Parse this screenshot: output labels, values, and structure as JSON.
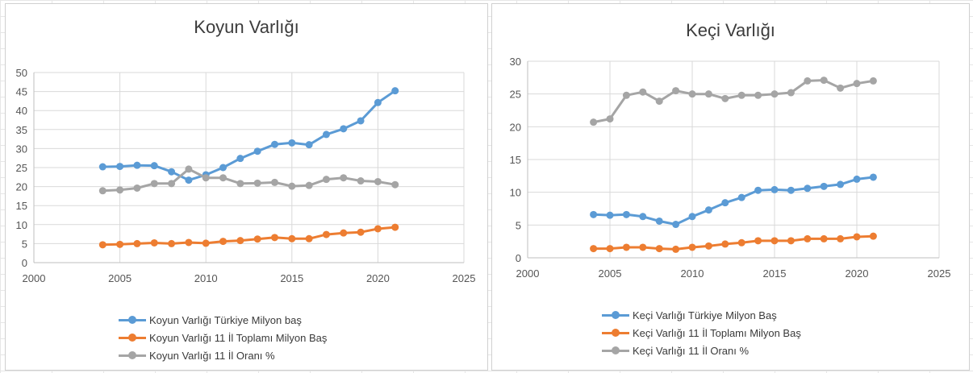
{
  "colors": {
    "series1": "#5b9bd5",
    "series2": "#ed7d31",
    "series3": "#a5a5a5",
    "gridline": "#d9d9d9",
    "axis": "#bfbfbf"
  },
  "chart_data": [
    {
      "type": "scatter",
      "markers": "lines-and-markers",
      "title": "Koyun Varlığı",
      "xlim": [
        2000,
        2025
      ],
      "ylim": [
        0,
        50
      ],
      "xticks": [
        2000,
        2005,
        2010,
        2015,
        2020,
        2025
      ],
      "yticks": [
        0,
        5,
        10,
        15,
        20,
        25,
        30,
        35,
        40,
        45,
        50
      ],
      "grid": true,
      "legend_position": "bottom",
      "x": [
        2004,
        2005,
        2006,
        2007,
        2008,
        2009,
        2010,
        2011,
        2012,
        2013,
        2014,
        2015,
        2016,
        2017,
        2018,
        2019,
        2020,
        2021
      ],
      "series": [
        {
          "name": "Koyun Varlığı Türkiye Milyon baş",
          "color": "#5b9bd5",
          "values": [
            25.2,
            25.3,
            25.6,
            25.5,
            23.9,
            21.7,
            23.1,
            25.0,
            27.4,
            29.3,
            31.1,
            31.5,
            31.0,
            33.7,
            35.2,
            37.3,
            42.1,
            45.2
          ]
        },
        {
          "name": "Koyun Varlığı 11 İl Toplamı Milyon Baş",
          "color": "#ed7d31",
          "values": [
            4.7,
            4.8,
            5.0,
            5.2,
            5.0,
            5.3,
            5.1,
            5.6,
            5.8,
            6.2,
            6.6,
            6.3,
            6.3,
            7.4,
            7.8,
            8.0,
            8.9,
            9.3
          ]
        },
        {
          "name": "Koyun Varlığı 11 İl Oranı %",
          "color": "#a5a5a5",
          "values": [
            18.9,
            19.1,
            19.6,
            20.8,
            20.8,
            24.6,
            22.3,
            22.3,
            20.8,
            20.9,
            21.1,
            20.1,
            20.3,
            21.9,
            22.3,
            21.5,
            21.3,
            20.5
          ]
        }
      ]
    },
    {
      "type": "scatter",
      "markers": "lines-and-markers",
      "title": "Keçi Varlığı",
      "xlim": [
        2000,
        2025
      ],
      "ylim": [
        0,
        30
      ],
      "xticks": [
        2000,
        2005,
        2010,
        2015,
        2020,
        2025
      ],
      "yticks": [
        0,
        5,
        10,
        15,
        20,
        25,
        30
      ],
      "grid": true,
      "legend_position": "bottom",
      "x": [
        2004,
        2005,
        2006,
        2007,
        2008,
        2009,
        2010,
        2011,
        2012,
        2013,
        2014,
        2015,
        2016,
        2017,
        2018,
        2019,
        2020,
        2021
      ],
      "series": [
        {
          "name": "Keçi Varlığı Türkiye Milyon Baş",
          "color": "#5b9bd5",
          "values": [
            6.6,
            6.5,
            6.6,
            6.3,
            5.6,
            5.1,
            6.3,
            7.3,
            8.4,
            9.2,
            10.3,
            10.4,
            10.3,
            10.6,
            10.9,
            11.2,
            12.0,
            12.3
          ]
        },
        {
          "name": "Keçi Varlığı 11 İl Toplamı Milyon Baş",
          "color": "#ed7d31",
          "values": [
            1.4,
            1.4,
            1.6,
            1.6,
            1.4,
            1.3,
            1.6,
            1.8,
            2.1,
            2.3,
            2.6,
            2.6,
            2.6,
            2.9,
            2.9,
            2.9,
            3.2,
            3.3
          ]
        },
        {
          "name": "Keçi Varlığı 11 İl Oranı %",
          "color": "#a5a5a5",
          "values": [
            20.7,
            21.2,
            24.8,
            25.3,
            23.9,
            25.5,
            25.0,
            25.0,
            24.3,
            24.8,
            24.8,
            25.0,
            25.2,
            27.0,
            27.1,
            25.9,
            26.6,
            27.0
          ]
        }
      ]
    }
  ]
}
